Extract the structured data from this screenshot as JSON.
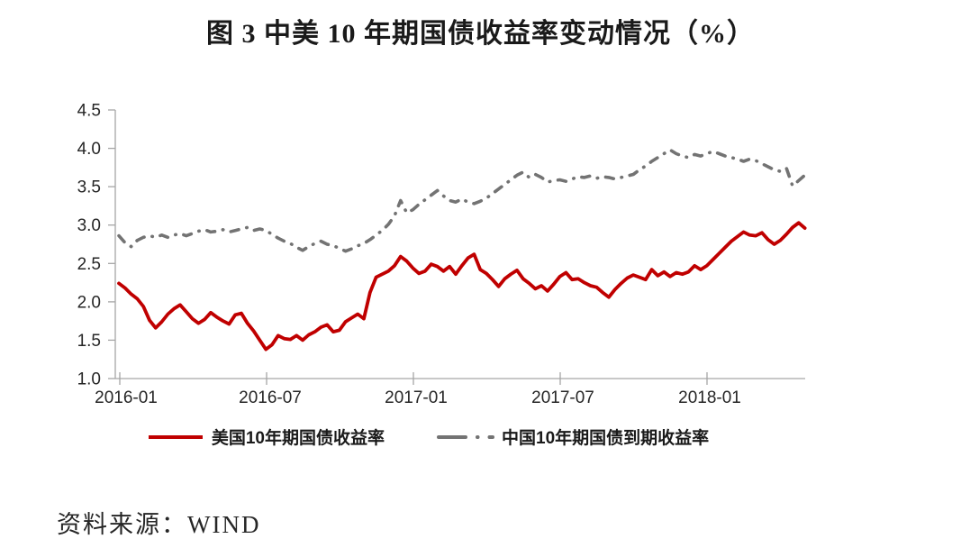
{
  "title": "图 3 中美 10 年期国债收益率变动情况（%）",
  "source": "资料来源：WIND",
  "colors": {
    "us_line": "#c00000",
    "china_line": "#737373",
    "axis": "#a6a6a6",
    "tick_text": "#262626"
  },
  "chart_data": {
    "type": "line",
    "title": "图 3 中美 10 年期国债收益率变动情况（%）",
    "xlabel": "",
    "ylabel": "",
    "ylim": [
      1.0,
      4.5
    ],
    "grid": false,
    "legend_position": "bottom",
    "y_tick_labels": [
      "4.5",
      "4.0",
      "3.5",
      "3.0",
      "2.5",
      "2.0",
      "1.5",
      "1.0"
    ],
    "x_tick_labels": [
      "2016-01",
      "2016-07",
      "2017-01",
      "2017-07",
      "2018-01"
    ],
    "x_tick_months": [
      0,
      6,
      12,
      18,
      24
    ],
    "x_unit": "months since 2016-01",
    "x_start": 0,
    "x_step": 0.25,
    "series": [
      {
        "name": "美国10年期国债收益率",
        "color": "#c00000",
        "style": "solid",
        "values": [
          2.24,
          2.18,
          2.1,
          2.04,
          1.94,
          1.76,
          1.66,
          1.74,
          1.84,
          1.91,
          1.96,
          1.87,
          1.78,
          1.72,
          1.77,
          1.86,
          1.8,
          1.75,
          1.71,
          1.83,
          1.85,
          1.72,
          1.62,
          1.5,
          1.38,
          1.44,
          1.56,
          1.52,
          1.51,
          1.56,
          1.5,
          1.57,
          1.61,
          1.67,
          1.7,
          1.61,
          1.63,
          1.74,
          1.79,
          1.84,
          1.78,
          2.12,
          2.32,
          2.36,
          2.4,
          2.47,
          2.59,
          2.53,
          2.44,
          2.37,
          2.4,
          2.49,
          2.46,
          2.4,
          2.46,
          2.36,
          2.47,
          2.57,
          2.62,
          2.42,
          2.37,
          2.29,
          2.2,
          2.3,
          2.36,
          2.41,
          2.3,
          2.24,
          2.17,
          2.21,
          2.14,
          2.23,
          2.33,
          2.38,
          2.29,
          2.3,
          2.25,
          2.21,
          2.19,
          2.12,
          2.06,
          2.16,
          2.24,
          2.31,
          2.35,
          2.32,
          2.29,
          2.42,
          2.34,
          2.39,
          2.33,
          2.38,
          2.36,
          2.39,
          2.47,
          2.42,
          2.47,
          2.55,
          2.63,
          2.71,
          2.79,
          2.85,
          2.91,
          2.87,
          2.86,
          2.9,
          2.81,
          2.75,
          2.8,
          2.88,
          2.97,
          3.03,
          2.96
        ]
      },
      {
        "name": "中国10年期国债到期收益率",
        "color": "#737373",
        "style": "dash-dot",
        "values": [
          2.86,
          2.77,
          2.72,
          2.8,
          2.84,
          2.86,
          2.84,
          2.87,
          2.84,
          2.87,
          2.89,
          2.86,
          2.89,
          2.92,
          2.94,
          2.91,
          2.92,
          2.94,
          2.91,
          2.93,
          2.95,
          2.97,
          2.93,
          2.95,
          2.93,
          2.88,
          2.83,
          2.79,
          2.76,
          2.71,
          2.67,
          2.72,
          2.76,
          2.79,
          2.75,
          2.73,
          2.7,
          2.66,
          2.69,
          2.73,
          2.76,
          2.81,
          2.87,
          2.93,
          3.01,
          3.12,
          3.32,
          3.16,
          3.2,
          3.27,
          3.33,
          3.39,
          3.45,
          3.38,
          3.32,
          3.3,
          3.34,
          3.3,
          3.28,
          3.31,
          3.35,
          3.41,
          3.47,
          3.53,
          3.59,
          3.65,
          3.69,
          3.62,
          3.66,
          3.62,
          3.56,
          3.58,
          3.59,
          3.57,
          3.6,
          3.63,
          3.62,
          3.64,
          3.61,
          3.63,
          3.62,
          3.6,
          3.62,
          3.64,
          3.66,
          3.72,
          3.77,
          3.83,
          3.88,
          3.93,
          3.98,
          3.93,
          3.9,
          3.88,
          3.92,
          3.9,
          3.93,
          3.96,
          3.93,
          3.9,
          3.88,
          3.86,
          3.83,
          3.86,
          3.84,
          3.8,
          3.76,
          3.72,
          3.7,
          3.74,
          3.51,
          3.58,
          3.65
        ]
      }
    ]
  }
}
